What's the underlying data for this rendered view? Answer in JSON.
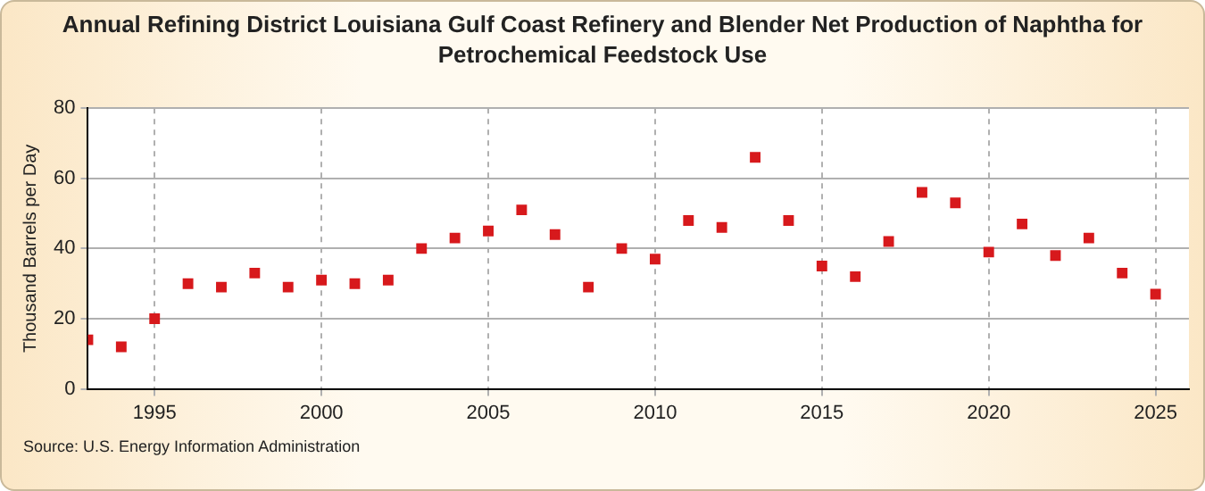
{
  "chart_data": {
    "type": "scatter",
    "title": "Annual Refining District Louisiana Gulf Coast Refinery and Blender Net Production of Naphtha for Petrochemical Feedstock Use",
    "ylabel": "Thousand Barrels per Day",
    "x": [
      1993,
      1994,
      1995,
      1996,
      1997,
      1998,
      1999,
      2000,
      2001,
      2002,
      2003,
      2004,
      2005,
      2006,
      2007,
      2008,
      2009,
      2010,
      2011,
      2012,
      2013,
      2014,
      2015,
      2016,
      2017,
      2018,
      2019,
      2020,
      2021,
      2022,
      2023,
      2024,
      2025
    ],
    "values": [
      14,
      12,
      20,
      30,
      29,
      33,
      29,
      31,
      30,
      31,
      40,
      43,
      45,
      51,
      44,
      29,
      40,
      37,
      48,
      46,
      66,
      48,
      35,
      32,
      42,
      56,
      53,
      39,
      47,
      38,
      43,
      33,
      27
    ],
    "color": "#d7191c",
    "marker": "square",
    "xlim": [
      1993,
      2026
    ],
    "xticks": [
      1995,
      2000,
      2005,
      2010,
      2015,
      2020,
      2025
    ],
    "ylim": [
      0,
      80
    ],
    "yticks": [
      0,
      20,
      40,
      60,
      80
    ],
    "grid": true,
    "legend": false,
    "annotations": [
      "Source: U.S. Energy Information Administration"
    ]
  }
}
